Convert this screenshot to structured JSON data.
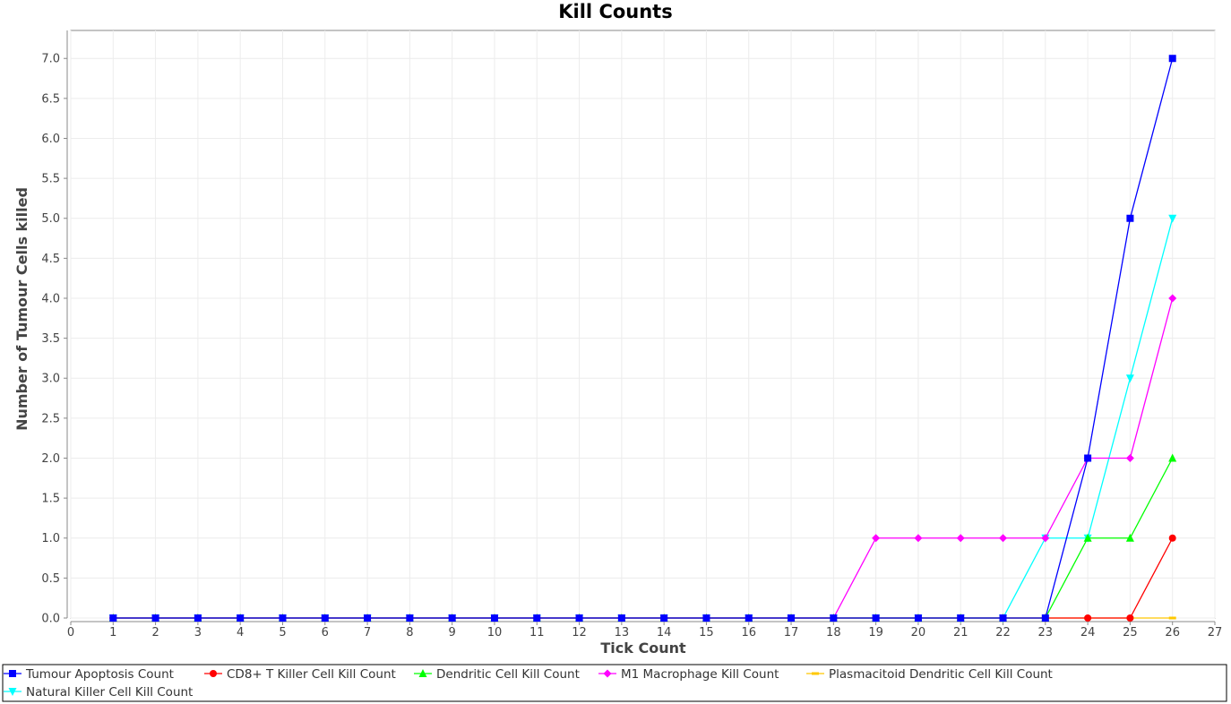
{
  "chart_data": {
    "type": "line",
    "title": "Kill Counts",
    "xlabel": "Tick Count",
    "ylabel": "Number of Tumour Cells killed",
    "xlim": [
      0,
      27
    ],
    "ylim": [
      0,
      7.35
    ],
    "xticks": [
      0,
      1,
      2,
      3,
      4,
      5,
      6,
      7,
      8,
      9,
      10,
      11,
      12,
      13,
      14,
      15,
      16,
      17,
      18,
      19,
      20,
      21,
      22,
      23,
      24,
      25,
      26,
      27
    ],
    "yticks": [
      "0.0",
      "0.5",
      "1.0",
      "1.5",
      "2.0",
      "2.5",
      "3.0",
      "3.5",
      "4.0",
      "4.5",
      "5.0",
      "5.5",
      "6.0",
      "6.5",
      "7.0"
    ],
    "grid": true,
    "legend_position": "bottom",
    "series": [
      {
        "name": "Natural Killer Cell Kill Count",
        "color": "#00ffff",
        "marker": "triangle-down",
        "points": [
          [
            1,
            0
          ],
          [
            2,
            0
          ],
          [
            3,
            0
          ],
          [
            4,
            0
          ],
          [
            5,
            0
          ],
          [
            6,
            0
          ],
          [
            7,
            0
          ],
          [
            8,
            0
          ],
          [
            9,
            0
          ],
          [
            10,
            0
          ],
          [
            11,
            0
          ],
          [
            12,
            0
          ],
          [
            13,
            0
          ],
          [
            14,
            0
          ],
          [
            15,
            0
          ],
          [
            16,
            0
          ],
          [
            17,
            0
          ],
          [
            18,
            0
          ],
          [
            19,
            0
          ],
          [
            20,
            0
          ],
          [
            21,
            0
          ],
          [
            22,
            0
          ],
          [
            23,
            1
          ],
          [
            24,
            1
          ],
          [
            25,
            3
          ],
          [
            26,
            5
          ]
        ]
      },
      {
        "name": "Plasmacitoid Dendritic Cell Kill Count",
        "color": "#ffc800",
        "marker": "dash",
        "points": [
          [
            1,
            0
          ],
          [
            2,
            0
          ],
          [
            3,
            0
          ],
          [
            4,
            0
          ],
          [
            5,
            0
          ],
          [
            6,
            0
          ],
          [
            7,
            0
          ],
          [
            8,
            0
          ],
          [
            9,
            0
          ],
          [
            10,
            0
          ],
          [
            11,
            0
          ],
          [
            12,
            0
          ],
          [
            13,
            0
          ],
          [
            14,
            0
          ],
          [
            15,
            0
          ],
          [
            16,
            0
          ],
          [
            17,
            0
          ],
          [
            18,
            0
          ],
          [
            19,
            0
          ],
          [
            20,
            0
          ],
          [
            21,
            0
          ],
          [
            22,
            0
          ],
          [
            23,
            0
          ],
          [
            24,
            0
          ],
          [
            25,
            0
          ],
          [
            26,
            0
          ]
        ]
      },
      {
        "name": "M1 Macrophage Kill Count",
        "color": "#ff00ff",
        "marker": "diamond",
        "points": [
          [
            1,
            0
          ],
          [
            2,
            0
          ],
          [
            3,
            0
          ],
          [
            4,
            0
          ],
          [
            5,
            0
          ],
          [
            6,
            0
          ],
          [
            7,
            0
          ],
          [
            8,
            0
          ],
          [
            9,
            0
          ],
          [
            10,
            0
          ],
          [
            11,
            0
          ],
          [
            12,
            0
          ],
          [
            13,
            0
          ],
          [
            14,
            0
          ],
          [
            15,
            0
          ],
          [
            16,
            0
          ],
          [
            17,
            0
          ],
          [
            18,
            0
          ],
          [
            19,
            1
          ],
          [
            20,
            1
          ],
          [
            21,
            1
          ],
          [
            22,
            1
          ],
          [
            23,
            1
          ],
          [
            24,
            2
          ],
          [
            25,
            2
          ],
          [
            26,
            4
          ]
        ]
      },
      {
        "name": "Dendritic Cell Kill Count",
        "color": "#00ff00",
        "marker": "triangle-up",
        "points": [
          [
            1,
            0
          ],
          [
            2,
            0
          ],
          [
            3,
            0
          ],
          [
            4,
            0
          ],
          [
            5,
            0
          ],
          [
            6,
            0
          ],
          [
            7,
            0
          ],
          [
            8,
            0
          ],
          [
            9,
            0
          ],
          [
            10,
            0
          ],
          [
            11,
            0
          ],
          [
            12,
            0
          ],
          [
            13,
            0
          ],
          [
            14,
            0
          ],
          [
            15,
            0
          ],
          [
            16,
            0
          ],
          [
            17,
            0
          ],
          [
            18,
            0
          ],
          [
            19,
            0
          ],
          [
            20,
            0
          ],
          [
            21,
            0
          ],
          [
            22,
            0
          ],
          [
            23,
            0
          ],
          [
            24,
            1
          ],
          [
            25,
            1
          ],
          [
            26,
            2
          ]
        ]
      },
      {
        "name": "CD8+ T Killer Cell Kill Count",
        "color": "#ff0000",
        "marker": "circle",
        "points": [
          [
            1,
            0
          ],
          [
            2,
            0
          ],
          [
            3,
            0
          ],
          [
            4,
            0
          ],
          [
            5,
            0
          ],
          [
            6,
            0
          ],
          [
            7,
            0
          ],
          [
            8,
            0
          ],
          [
            9,
            0
          ],
          [
            10,
            0
          ],
          [
            11,
            0
          ],
          [
            12,
            0
          ],
          [
            13,
            0
          ],
          [
            14,
            0
          ],
          [
            15,
            0
          ],
          [
            16,
            0
          ],
          [
            17,
            0
          ],
          [
            18,
            0
          ],
          [
            19,
            0
          ],
          [
            20,
            0
          ],
          [
            21,
            0
          ],
          [
            22,
            0
          ],
          [
            23,
            0
          ],
          [
            24,
            0
          ],
          [
            25,
            0
          ],
          [
            26,
            1
          ]
        ]
      },
      {
        "name": "Tumour Apoptosis Count",
        "color": "#0000ff",
        "marker": "square",
        "points": [
          [
            1,
            0
          ],
          [
            2,
            0
          ],
          [
            3,
            0
          ],
          [
            4,
            0
          ],
          [
            5,
            0
          ],
          [
            6,
            0
          ],
          [
            7,
            0
          ],
          [
            8,
            0
          ],
          [
            9,
            0
          ],
          [
            10,
            0
          ],
          [
            11,
            0
          ],
          [
            12,
            0
          ],
          [
            13,
            0
          ],
          [
            14,
            0
          ],
          [
            15,
            0
          ],
          [
            16,
            0
          ],
          [
            17,
            0
          ],
          [
            18,
            0
          ],
          [
            19,
            0
          ],
          [
            20,
            0
          ],
          [
            21,
            0
          ],
          [
            22,
            0
          ],
          [
            23,
            0
          ],
          [
            24,
            2
          ],
          [
            25,
            5
          ],
          [
            26,
            7
          ]
        ]
      }
    ],
    "legend_order": [
      "Tumour Apoptosis Count",
      "CD8+ T Killer Cell Kill Count",
      "Dendritic Cell Kill Count",
      "M1 Macrophage Kill Count",
      "Plasmacitoid Dendritic Cell Kill Count",
      "Natural Killer Cell Kill Count"
    ]
  }
}
